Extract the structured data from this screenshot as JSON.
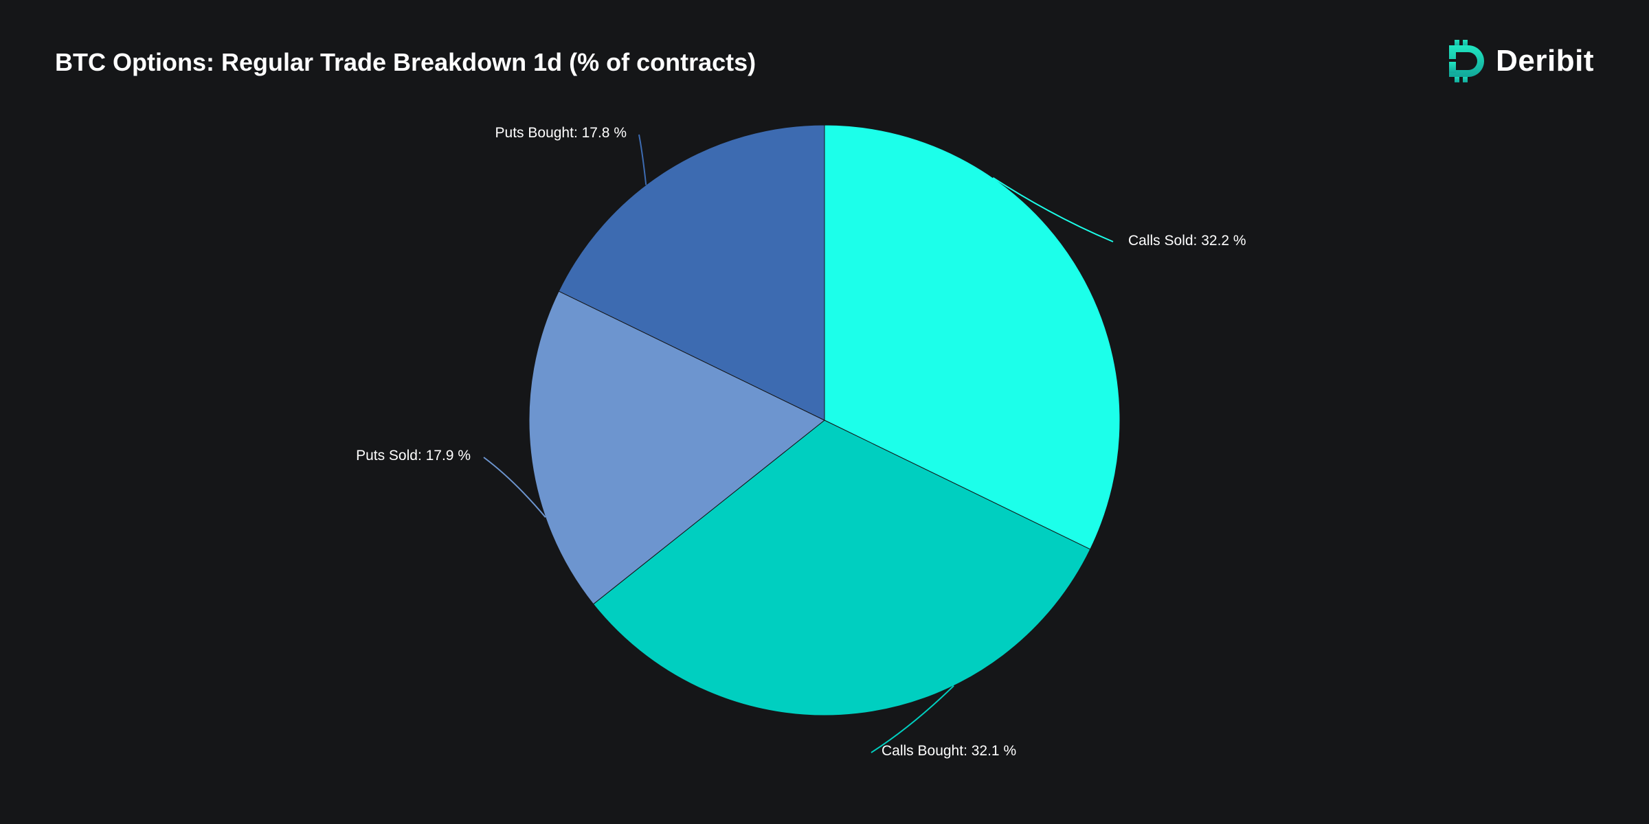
{
  "title": "BTC Options: Regular Trade Breakdown 1d (% of contracts)",
  "brand": {
    "name": "Deribit",
    "logo_icon": "deribit-logo-icon",
    "accent": "#1de9c9"
  },
  "chart_data": {
    "type": "pie",
    "title": "BTC Options: Regular Trade Breakdown 1d (% of contracts)",
    "label_suffix": " %",
    "slices": [
      {
        "label": "Calls Sold",
        "value": 32.2,
        "color": "#1cffea"
      },
      {
        "label": "Calls Bought",
        "value": 32.1,
        "color": "#00cfc0"
      },
      {
        "label": "Puts Sold",
        "value": 17.9,
        "color": "#6d95cf"
      },
      {
        "label": "Puts Bought",
        "value": 17.8,
        "color": "#3d6bb1"
      }
    ],
    "start_angle": "12 o'clock",
    "direction": "clockwise",
    "legend": "none",
    "data_labels": "outside with leader lines"
  }
}
